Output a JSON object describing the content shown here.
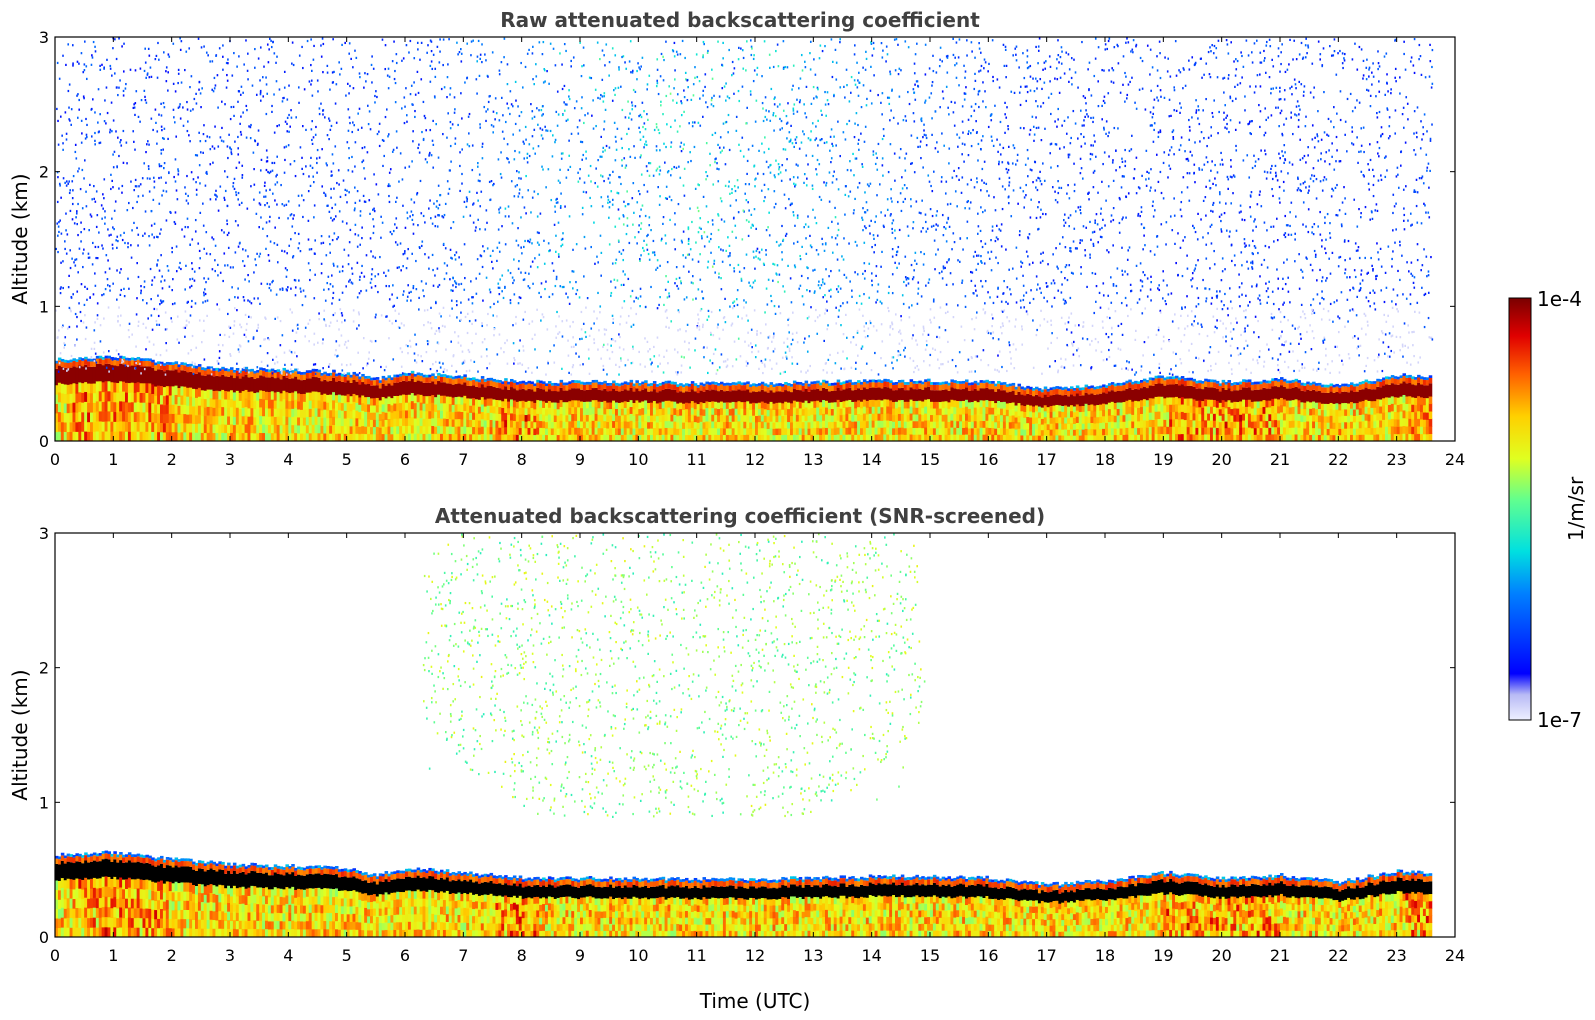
{
  "chart_data": [
    {
      "type": "heatmap",
      "title": "Raw attenuated backscattering coefficient",
      "xlabel": "",
      "ylabel": "Altitude (km)",
      "xlim": [
        0,
        24
      ],
      "ylim": [
        0,
        3
      ],
      "xticks": [
        "0",
        "1",
        "2",
        "3",
        "4",
        "5",
        "6",
        "7",
        "8",
        "9",
        "10",
        "11",
        "12",
        "13",
        "14",
        "15",
        "16",
        "17",
        "18",
        "19",
        "20",
        "21",
        "22",
        "23",
        "24"
      ],
      "yticks": [
        "0",
        "1",
        "2",
        "3"
      ],
      "data_end_hour": 23.6,
      "boundary_layer_top_km": [
        {
          "t": 0,
          "z": 0.55
        },
        {
          "t": 1,
          "z": 0.57
        },
        {
          "t": 2,
          "z": 0.52
        },
        {
          "t": 3,
          "z": 0.48
        },
        {
          "t": 4,
          "z": 0.47
        },
        {
          "t": 5,
          "z": 0.45
        },
        {
          "t": 5.5,
          "z": 0.4
        },
        {
          "t": 6,
          "z": 0.45
        },
        {
          "t": 7,
          "z": 0.42
        },
        {
          "t": 8,
          "z": 0.38
        },
        {
          "t": 9,
          "z": 0.38
        },
        {
          "t": 10,
          "z": 0.38
        },
        {
          "t": 11,
          "z": 0.37
        },
        {
          "t": 12,
          "z": 0.37
        },
        {
          "t": 13,
          "z": 0.38
        },
        {
          "t": 14,
          "z": 0.39
        },
        {
          "t": 15,
          "z": 0.39
        },
        {
          "t": 16,
          "z": 0.38
        },
        {
          "t": 17,
          "z": 0.33
        },
        {
          "t": 18,
          "z": 0.36
        },
        {
          "t": 19,
          "z": 0.42
        },
        {
          "t": 20,
          "z": 0.38
        },
        {
          "t": 21,
          "z": 0.4
        },
        {
          "t": 22,
          "z": 0.35
        },
        {
          "t": 23,
          "z": 0.43
        },
        {
          "t": 23.6,
          "z": 0.42
        }
      ],
      "screened": false
    },
    {
      "type": "heatmap",
      "title": "Attenuated backscattering coefficient (SNR-screened)",
      "xlabel": "Time (UTC)",
      "ylabel": "Altitude (km)",
      "xlim": [
        0,
        24
      ],
      "ylim": [
        0,
        3
      ],
      "xticks": [
        "0",
        "1",
        "2",
        "3",
        "4",
        "5",
        "6",
        "7",
        "8",
        "9",
        "10",
        "11",
        "12",
        "13",
        "14",
        "15",
        "16",
        "17",
        "18",
        "19",
        "20",
        "21",
        "22",
        "23",
        "24"
      ],
      "yticks": [
        "0",
        "1",
        "2",
        "3"
      ],
      "data_end_hour": 23.6,
      "boundary_layer_top_km": [
        {
          "t": 0,
          "z": 0.55
        },
        {
          "t": 1,
          "z": 0.57
        },
        {
          "t": 2,
          "z": 0.52
        },
        {
          "t": 3,
          "z": 0.48
        },
        {
          "t": 4,
          "z": 0.47
        },
        {
          "t": 5,
          "z": 0.45
        },
        {
          "t": 5.5,
          "z": 0.4
        },
        {
          "t": 6,
          "z": 0.45
        },
        {
          "t": 7,
          "z": 0.42
        },
        {
          "t": 8,
          "z": 0.38
        },
        {
          "t": 9,
          "z": 0.38
        },
        {
          "t": 10,
          "z": 0.38
        },
        {
          "t": 11,
          "z": 0.37
        },
        {
          "t": 12,
          "z": 0.37
        },
        {
          "t": 13,
          "z": 0.38
        },
        {
          "t": 14,
          "z": 0.39
        },
        {
          "t": 15,
          "z": 0.39
        },
        {
          "t": 16,
          "z": 0.38
        },
        {
          "t": 17,
          "z": 0.33
        },
        {
          "t": 18,
          "z": 0.36
        },
        {
          "t": 19,
          "z": 0.42
        },
        {
          "t": 20,
          "z": 0.38
        },
        {
          "t": 21,
          "z": 0.4
        },
        {
          "t": 22,
          "z": 0.35
        },
        {
          "t": 23,
          "z": 0.43
        },
        {
          "t": 23.6,
          "z": 0.42
        }
      ],
      "screened": true
    }
  ],
  "colorbar": {
    "label": "1/m/sr",
    "max_label": "1e-4",
    "min_label": "1e-7",
    "scale": "log",
    "range": [
      1e-07,
      0.0001
    ],
    "colormap": "jet"
  },
  "colors": {
    "saturated_screened": "#000000",
    "bl_core": "#8b0000",
    "axis": "#000000",
    "title": "#404040"
  }
}
